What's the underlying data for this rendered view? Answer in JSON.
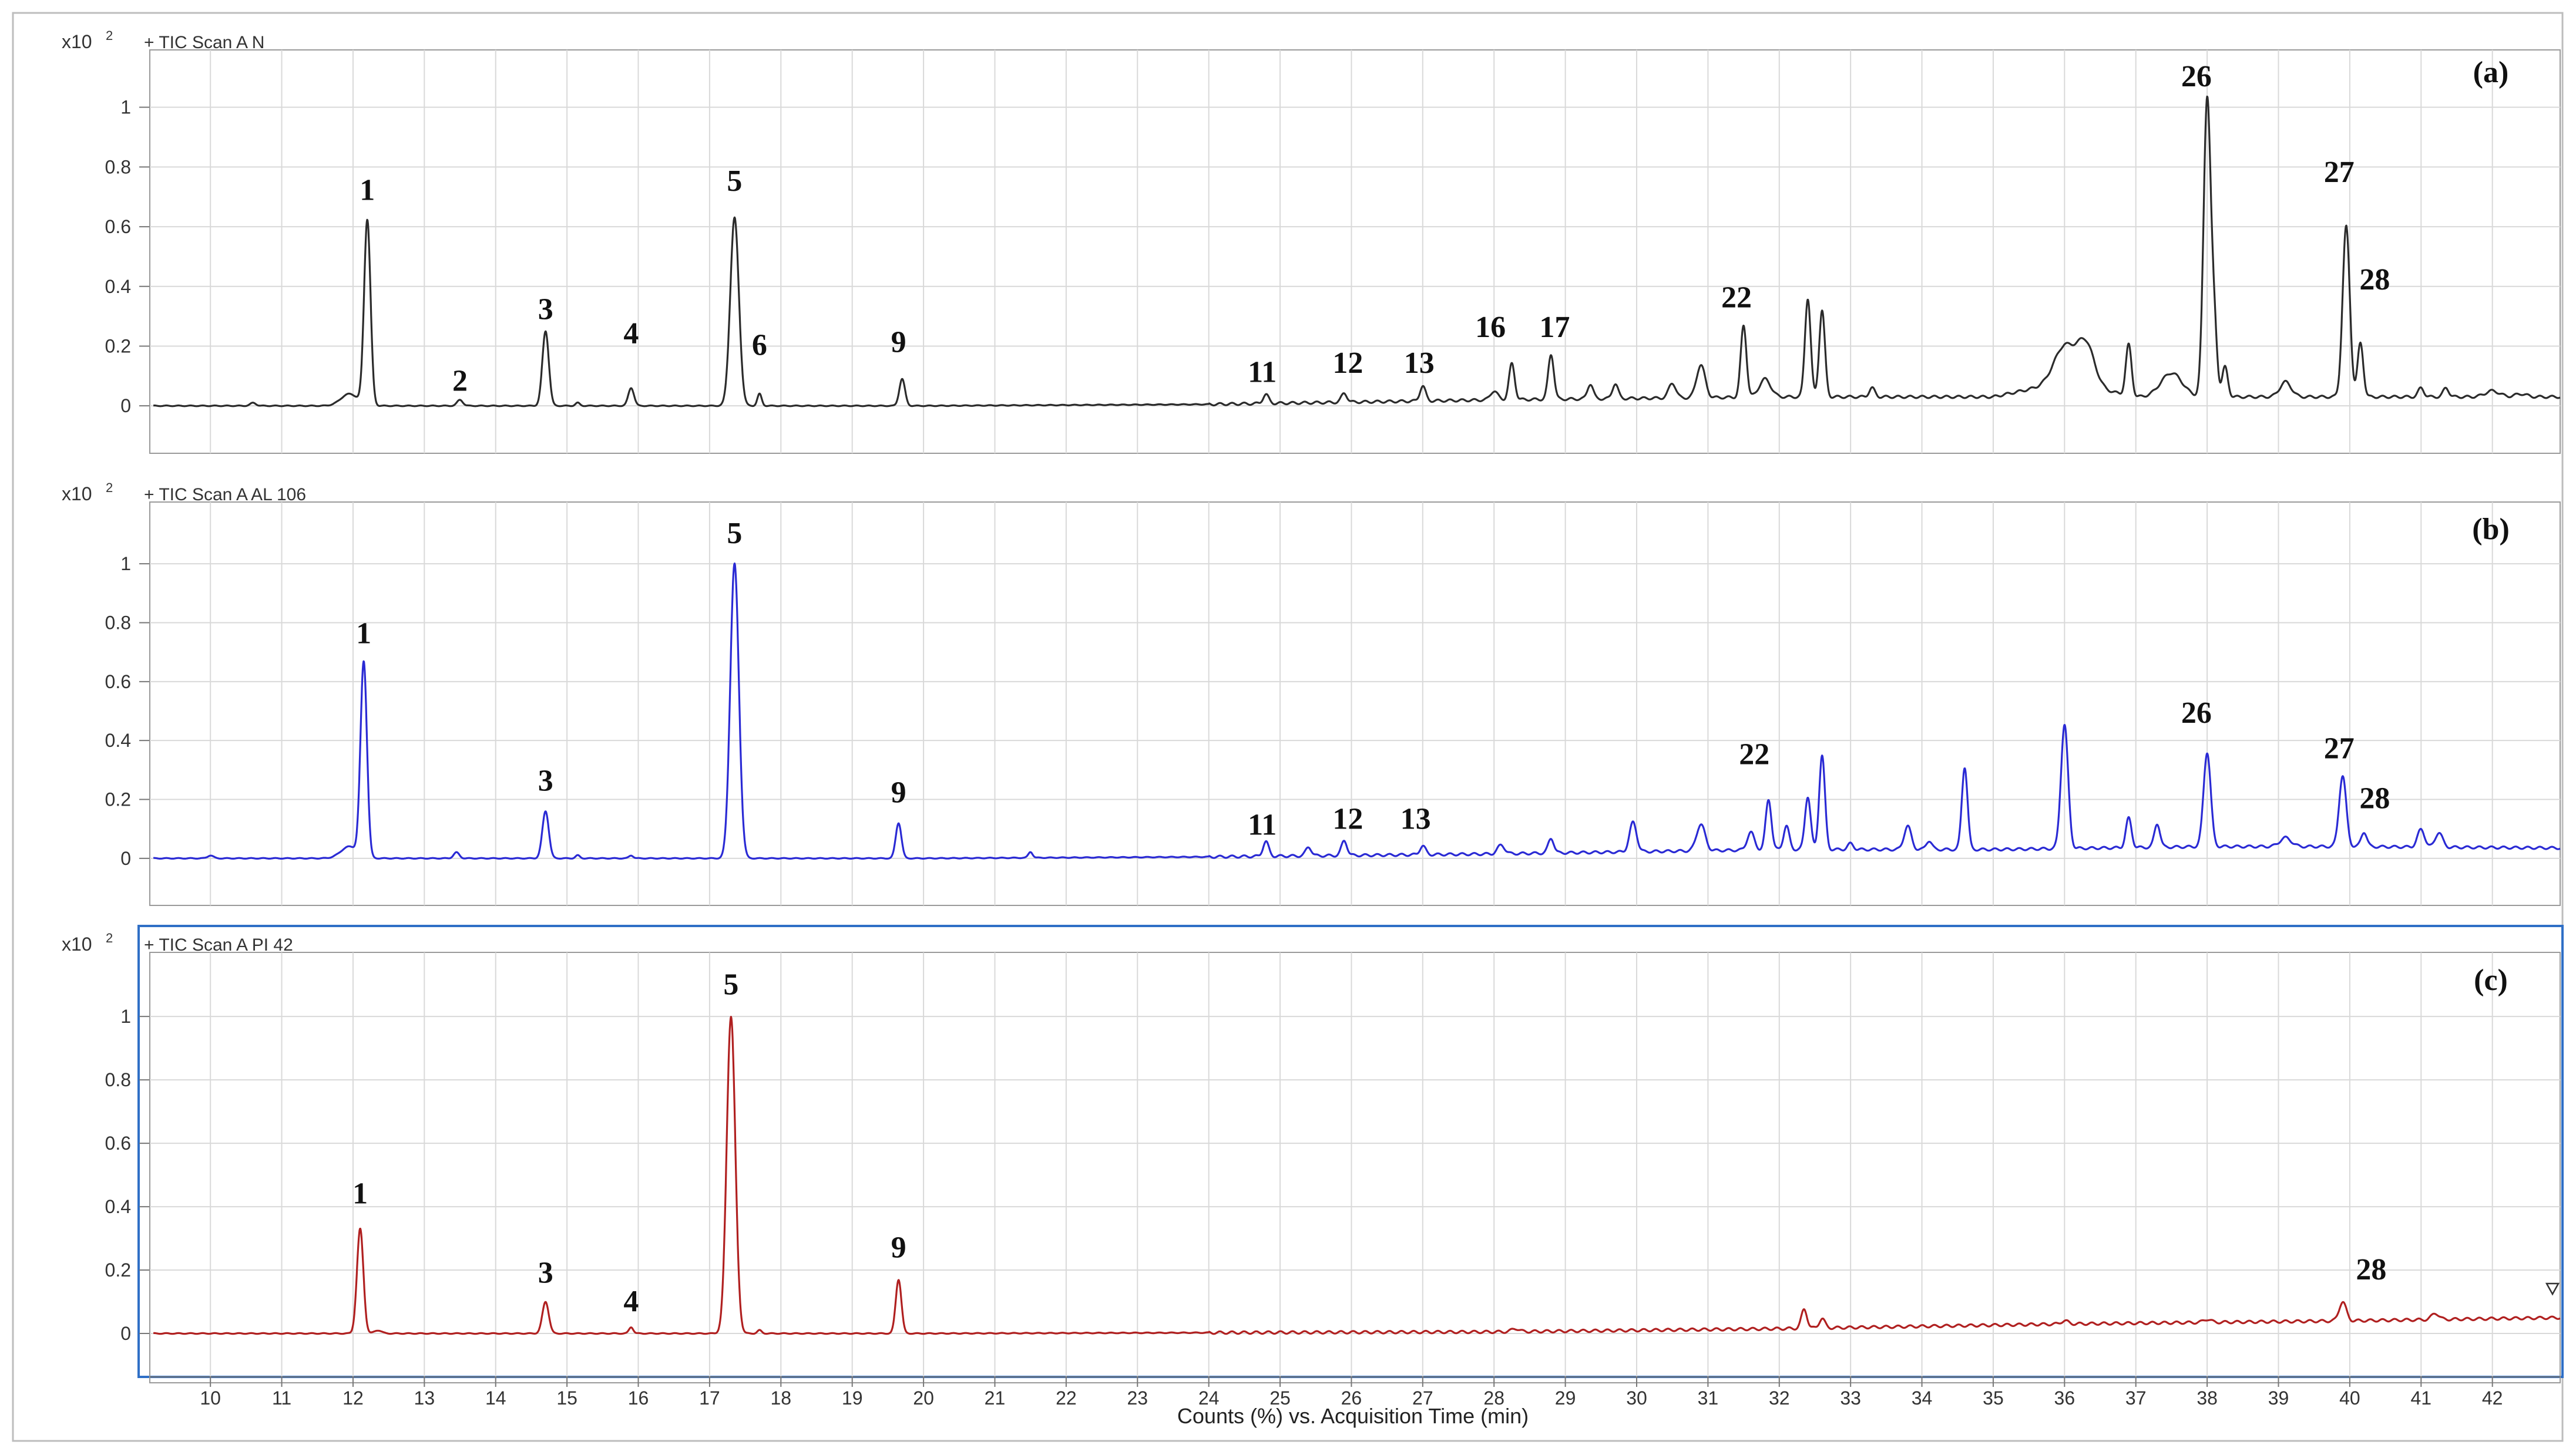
{
  "colors": {
    "panel_a": "#2b2b2b",
    "panel_b": "#2a2ad4",
    "panel_c": "#b02020",
    "grid": "#d9d9d9",
    "frame": "#9a9a9a",
    "selected_frame": "#2f6fc6"
  },
  "x_axis_label": "Counts (%) vs. Acquisition Time (min)",
  "chart_data": [
    {
      "type": "line",
      "panel_letter": "(a)",
      "header_title": "+ TIC Scan A N",
      "y_scale_label": "x10",
      "y_scale_exp": "2",
      "yticks": [
        "0",
        "0.2",
        "0.4",
        "0.6",
        "0.8",
        "1"
      ],
      "xlim": [
        9.15,
        42.95
      ],
      "ylim": [
        -0.1,
        1.08
      ],
      "xticks": [
        "10",
        "11",
        "12",
        "13",
        "14",
        "15",
        "16",
        "17",
        "18",
        "19",
        "20",
        "21",
        "22",
        "23",
        "24",
        "25",
        "26",
        "27",
        "28",
        "29",
        "30",
        "31",
        "32",
        "33",
        "34",
        "35",
        "36",
        "37",
        "38",
        "39",
        "40",
        "41",
        "42"
      ],
      "baseline": [
        [
          9.2,
          0.0
        ],
        [
          20,
          0.0
        ],
        [
          24,
          0.005
        ],
        [
          28,
          0.02
        ],
        [
          32,
          0.03
        ],
        [
          35,
          0.03
        ],
        [
          36,
          0.08
        ],
        [
          37,
          0.03
        ],
        [
          40,
          0.03
        ],
        [
          43,
          0.03
        ]
      ],
      "peaks": [
        [
          10.6,
          0.01,
          0.04
        ],
        [
          11.95,
          0.04,
          0.12
        ],
        [
          12.2,
          0.62,
          0.045
        ],
        [
          13.5,
          0.02,
          0.04
        ],
        [
          14.7,
          0.25,
          0.045
        ],
        [
          15.15,
          0.01,
          0.03
        ],
        [
          15.9,
          0.06,
          0.04
        ],
        [
          17.35,
          0.63,
          0.06
        ],
        [
          17.7,
          0.04,
          0.03
        ],
        [
          19.7,
          0.09,
          0.04
        ],
        [
          24.8,
          0.03,
          0.04
        ],
        [
          25.9,
          0.03,
          0.04
        ],
        [
          27.0,
          0.05,
          0.04
        ],
        [
          28.0,
          0.03,
          0.05
        ],
        [
          28.25,
          0.12,
          0.04
        ],
        [
          28.8,
          0.15,
          0.04
        ],
        [
          29.35,
          0.05,
          0.04
        ],
        [
          29.7,
          0.05,
          0.04
        ],
        [
          30.5,
          0.05,
          0.05
        ],
        [
          30.9,
          0.11,
          0.06
        ],
        [
          31.5,
          0.24,
          0.04
        ],
        [
          31.8,
          0.06,
          0.08
        ],
        [
          32.4,
          0.33,
          0.04
        ],
        [
          32.6,
          0.29,
          0.04
        ],
        [
          33.3,
          0.03,
          0.04
        ],
        [
          36.0,
          0.12,
          0.15
        ],
        [
          36.3,
          0.14,
          0.12
        ],
        [
          36.9,
          0.17,
          0.04
        ],
        [
          37.5,
          0.08,
          0.15
        ],
        [
          38.0,
          1.0,
          0.05
        ],
        [
          38.1,
          0.22,
          0.04
        ],
        [
          38.25,
          0.1,
          0.04
        ],
        [
          39.1,
          0.05,
          0.08
        ],
        [
          39.95,
          0.57,
          0.05
        ],
        [
          40.15,
          0.18,
          0.04
        ],
        [
          41.0,
          0.03,
          0.04
        ],
        [
          41.35,
          0.03,
          0.04
        ],
        [
          42.0,
          0.02,
          0.1
        ],
        [
          42.4,
          0.01,
          0.08
        ]
      ],
      "peak_labels": [
        {
          "text": "1",
          "x": 12.2,
          "y": 0.69
        },
        {
          "text": "2",
          "x": 13.5,
          "y": 0.05
        },
        {
          "text": "3",
          "x": 14.7,
          "y": 0.29
        },
        {
          "text": "4",
          "x": 15.9,
          "y": 0.21
        },
        {
          "text": "5",
          "x": 17.35,
          "y": 0.72
        },
        {
          "text": "6",
          "x": 17.7,
          "y": 0.17
        },
        {
          "text": "9",
          "x": 19.65,
          "y": 0.18
        },
        {
          "text": "11",
          "x": 24.75,
          "y": 0.08
        },
        {
          "text": "12",
          "x": 25.95,
          "y": 0.11
        },
        {
          "text": "13",
          "x": 26.95,
          "y": 0.11
        },
        {
          "text": "16",
          "x": 27.95,
          "y": 0.23
        },
        {
          "text": "17",
          "x": 28.85,
          "y": 0.23
        },
        {
          "text": "22",
          "x": 31.4,
          "y": 0.33
        },
        {
          "text": "26",
          "x": 37.85,
          "y": 1.07
        },
        {
          "text": "27",
          "x": 39.85,
          "y": 0.75
        },
        {
          "text": "28",
          "x": 40.35,
          "y": 0.39
        }
      ]
    },
    {
      "type": "line",
      "panel_letter": "(b)",
      "header_title": "+ TIC Scan A AL 106",
      "y_scale_label": "x10",
      "y_scale_exp": "2",
      "yticks": [
        "0",
        "0.2",
        "0.4",
        "0.6",
        "0.8",
        "1"
      ],
      "xlim": [
        9.15,
        42.95
      ],
      "ylim": [
        -0.1,
        1.08
      ],
      "xticks": [
        "10",
        "11",
        "12",
        "13",
        "14",
        "15",
        "16",
        "17",
        "18",
        "19",
        "20",
        "21",
        "22",
        "23",
        "24",
        "25",
        "26",
        "27",
        "28",
        "29",
        "30",
        "31",
        "32",
        "33",
        "34",
        "35",
        "36",
        "37",
        "38",
        "39",
        "40",
        "41",
        "42"
      ],
      "baseline": [
        [
          9.2,
          0.0
        ],
        [
          20,
          0.0
        ],
        [
          24,
          0.005
        ],
        [
          28,
          0.015
        ],
        [
          32,
          0.03
        ],
        [
          35,
          0.03
        ],
        [
          38,
          0.04
        ],
        [
          40,
          0.04
        ],
        [
          43,
          0.035
        ]
      ],
      "peaks": [
        [
          10.0,
          0.01,
          0.04
        ],
        [
          11.95,
          0.04,
          0.12
        ],
        [
          12.15,
          0.66,
          0.045
        ],
        [
          13.45,
          0.02,
          0.04
        ],
        [
          14.7,
          0.16,
          0.045
        ],
        [
          15.15,
          0.01,
          0.03
        ],
        [
          15.9,
          0.01,
          0.03
        ],
        [
          17.35,
          1.0,
          0.06
        ],
        [
          19.65,
          0.12,
          0.04
        ],
        [
          21.5,
          0.02,
          0.03
        ],
        [
          24.8,
          0.05,
          0.04
        ],
        [
          25.4,
          0.03,
          0.04
        ],
        [
          25.9,
          0.05,
          0.04
        ],
        [
          27.0,
          0.03,
          0.04
        ],
        [
          28.1,
          0.03,
          0.05
        ],
        [
          28.8,
          0.05,
          0.04
        ],
        [
          29.95,
          0.1,
          0.05
        ],
        [
          30.9,
          0.09,
          0.06
        ],
        [
          31.6,
          0.06,
          0.05
        ],
        [
          31.85,
          0.17,
          0.04
        ],
        [
          32.1,
          0.08,
          0.04
        ],
        [
          32.4,
          0.18,
          0.04
        ],
        [
          32.6,
          0.32,
          0.04
        ],
        [
          33.0,
          0.02,
          0.04
        ],
        [
          33.8,
          0.08,
          0.05
        ],
        [
          34.1,
          0.03,
          0.04
        ],
        [
          34.6,
          0.28,
          0.04
        ],
        [
          36.0,
          0.42,
          0.05
        ],
        [
          36.9,
          0.1,
          0.04
        ],
        [
          37.3,
          0.08,
          0.04
        ],
        [
          38.0,
          0.32,
          0.05
        ],
        [
          39.1,
          0.03,
          0.08
        ],
        [
          39.9,
          0.24,
          0.05
        ],
        [
          40.2,
          0.05,
          0.04
        ],
        [
          41.0,
          0.06,
          0.05
        ],
        [
          41.25,
          0.05,
          0.05
        ]
      ],
      "peak_labels": [
        {
          "text": "1",
          "x": 12.15,
          "y": 0.73
        },
        {
          "text": "3",
          "x": 14.7,
          "y": 0.23
        },
        {
          "text": "5",
          "x": 17.35,
          "y": 1.07
        },
        {
          "text": "9",
          "x": 19.65,
          "y": 0.19
        },
        {
          "text": "11",
          "x": 24.75,
          "y": 0.08
        },
        {
          "text": "12",
          "x": 25.95,
          "y": 0.1
        },
        {
          "text": "13",
          "x": 26.9,
          "y": 0.1
        },
        {
          "text": "22",
          "x": 31.65,
          "y": 0.32
        },
        {
          "text": "26",
          "x": 37.85,
          "y": 0.46
        },
        {
          "text": "27",
          "x": 39.85,
          "y": 0.34
        },
        {
          "text": "28",
          "x": 40.35,
          "y": 0.17
        }
      ]
    },
    {
      "type": "line",
      "panel_letter": "(c)",
      "header_title": "+ TIC Scan A PI 42",
      "y_scale_label": "x10",
      "y_scale_exp": "2",
      "yticks": [
        "0",
        "0.2",
        "0.4",
        "0.6",
        "0.8",
        "1"
      ],
      "xlim": [
        9.15,
        42.95
      ],
      "ylim": [
        -0.1,
        1.08
      ],
      "xticks": [
        "10",
        "11",
        "12",
        "13",
        "14",
        "15",
        "16",
        "17",
        "18",
        "19",
        "20",
        "21",
        "22",
        "23",
        "24",
        "25",
        "26",
        "27",
        "28",
        "29",
        "30",
        "31",
        "32",
        "33",
        "34",
        "35",
        "36",
        "37",
        "38",
        "39",
        "40",
        "41",
        "42"
      ],
      "baseline": [
        [
          9.2,
          0.0
        ],
        [
          20,
          0.0
        ],
        [
          28,
          0.005
        ],
        [
          32,
          0.015
        ],
        [
          36,
          0.03
        ],
        [
          40,
          0.04
        ],
        [
          43,
          0.05
        ]
      ],
      "peaks": [
        [
          12.1,
          0.33,
          0.045
        ],
        [
          12.35,
          0.01,
          0.05
        ],
        [
          14.7,
          0.1,
          0.045
        ],
        [
          15.9,
          0.02,
          0.03
        ],
        [
          17.3,
          1.0,
          0.06
        ],
        [
          17.7,
          0.01,
          0.03
        ],
        [
          19.65,
          0.17,
          0.04
        ],
        [
          28.3,
          0.01,
          0.05
        ],
        [
          32.35,
          0.06,
          0.04
        ],
        [
          32.6,
          0.03,
          0.04
        ],
        [
          36.0,
          0.01,
          0.05
        ],
        [
          38.0,
          0.01,
          0.05
        ],
        [
          39.9,
          0.06,
          0.05
        ],
        [
          41.2,
          0.02,
          0.05
        ]
      ],
      "peak_labels": [
        {
          "text": "1",
          "x": 12.1,
          "y": 0.41
        },
        {
          "text": "3",
          "x": 14.7,
          "y": 0.16
        },
        {
          "text": "4",
          "x": 15.9,
          "y": 0.07
        },
        {
          "text": "5",
          "x": 17.3,
          "y": 1.07
        },
        {
          "text": "9",
          "x": 19.65,
          "y": 0.24
        },
        {
          "text": "28",
          "x": 40.3,
          "y": 0.17
        }
      ]
    }
  ]
}
